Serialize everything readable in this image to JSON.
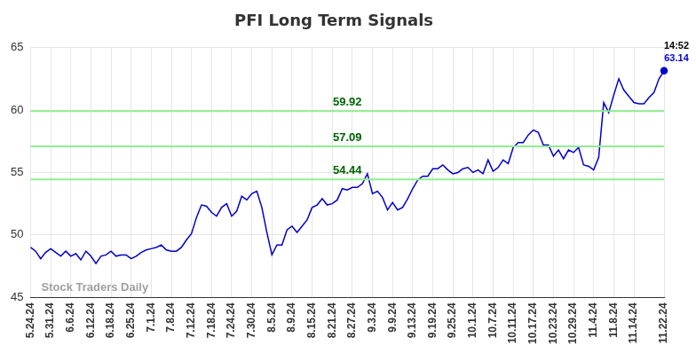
{
  "chart_data": {
    "type": "line",
    "title": "PFI Long Term Signals",
    "categories": [
      "5.24.24",
      null,
      null,
      null,
      "5.31.24",
      null,
      null,
      null,
      "6.6.24",
      null,
      null,
      null,
      "6.12.24",
      null,
      null,
      null,
      "6.18.24",
      null,
      null,
      null,
      "6.25.24",
      null,
      null,
      null,
      "7.1.24",
      null,
      null,
      null,
      "7.8.24",
      null,
      null,
      null,
      "7.12.24",
      null,
      null,
      null,
      "7.18.24",
      null,
      null,
      null,
      "7.24.24",
      null,
      null,
      null,
      "7.30.24",
      null,
      null,
      null,
      "8.5.24",
      null,
      null,
      null,
      "8.9.24",
      null,
      null,
      null,
      "8.15.24",
      null,
      null,
      null,
      "8.21.24",
      null,
      null,
      null,
      "8.27.24",
      null,
      null,
      null,
      "9.3.24",
      null,
      null,
      null,
      "9.9.24",
      null,
      null,
      null,
      "9.13.24",
      null,
      null,
      null,
      "9.19.24",
      null,
      null,
      null,
      "9.25.24",
      null,
      null,
      null,
      "10.1.24",
      null,
      null,
      null,
      "10.7.24",
      null,
      null,
      null,
      "10.11.24",
      null,
      null,
      null,
      "10.17.24",
      null,
      null,
      null,
      "10.23.24",
      null,
      null,
      null,
      "10.29.24",
      null,
      null,
      null,
      "11.4.24",
      null,
      null,
      null,
      "11.8.24",
      null,
      null,
      null,
      "11.14.24",
      null,
      null,
      null,
      null,
      null,
      "11.22.24"
    ],
    "values": [
      49.0,
      48.7,
      48.1,
      48.6,
      48.9,
      48.6,
      48.3,
      48.7,
      48.3,
      48.5,
      48.0,
      48.7,
      48.3,
      47.7,
      48.3,
      48.4,
      48.7,
      48.3,
      48.4,
      48.4,
      48.1,
      48.3,
      48.6,
      48.8,
      48.9,
      49.0,
      49.2,
      48.8,
      48.7,
      48.7,
      49.0,
      49.6,
      50.1,
      51.4,
      52.4,
      52.3,
      51.8,
      51.5,
      52.2,
      52.5,
      51.5,
      51.9,
      53.1,
      52.8,
      53.3,
      53.5,
      52.2,
      50.2,
      48.4,
      49.2,
      49.2,
      50.4,
      50.7,
      50.2,
      50.7,
      51.2,
      52.2,
      52.4,
      52.9,
      52.4,
      52.5,
      52.8,
      53.7,
      53.6,
      53.8,
      53.8,
      54.1,
      54.9,
      53.3,
      53.5,
      53.0,
      52.0,
      52.6,
      52.0,
      52.2,
      52.9,
      53.7,
      54.4,
      54.7,
      54.7,
      55.3,
      55.3,
      55.6,
      55.2,
      54.9,
      55.0,
      55.3,
      55.4,
      55.0,
      55.2,
      54.9,
      56.0,
      55.1,
      55.4,
      56.0,
      55.7,
      57.0,
      57.4,
      57.4,
      58.0,
      58.4,
      58.2,
      57.2,
      57.2,
      56.3,
      56.8,
      56.1,
      56.8,
      56.6,
      57.0,
      55.6,
      55.5,
      55.2,
      56.2,
      60.6,
      59.8,
      61.2,
      62.5,
      61.6,
      61.1,
      60.6,
      60.5,
      60.5,
      61.0,
      61.4,
      62.5,
      63.14
    ],
    "color": "#0000cc",
    "ylim": [
      45,
      65
    ],
    "yticks": [
      45,
      50,
      55,
      60,
      65
    ],
    "grid": true,
    "hlines": [
      59.92,
      57.09,
      54.44
    ],
    "hline_color": "#90ee90",
    "annotations": [
      "14:52",
      "63.14"
    ],
    "watermark": "Stock Traders Daily"
  }
}
